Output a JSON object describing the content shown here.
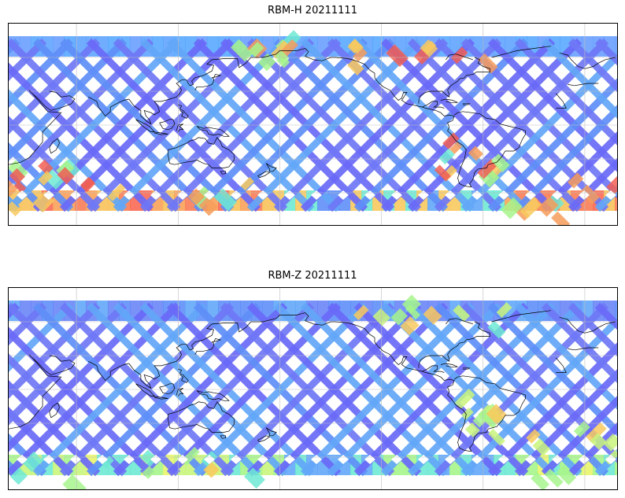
{
  "panels": [
    {
      "title": "RBM-H 20211111",
      "palette": "jet",
      "band_colors": {
        "north_lat_band": [
          "#5aa8ff",
          "#62a4ff",
          "#6aa0ff"
        ],
        "south_lat_band": [
          "#f97d57",
          "#f9a25a",
          "#f7c25b",
          "#f86a55"
        ],
        "tracks": [
          "#6a6af8",
          "#6f78f6",
          "#5f8ff8",
          "#63a7f8"
        ],
        "highlights": [
          "#f15f54",
          "#f69c5b",
          "#f8c95e",
          "#a6f58c",
          "#6ee9d4"
        ]
      }
    },
    {
      "title": "RBM-Z 20211111",
      "palette": "jet",
      "band_colors": {
        "north_lat_band": [
          "#5f8ff8",
          "#6a86f7",
          "#63a7f8"
        ],
        "south_lat_band": [
          "#a6f58c",
          "#c9f57c",
          "#e8f56b",
          "#6ee9d4"
        ],
        "tracks": [
          "#6a6af8",
          "#6f78f6",
          "#5f8ff8",
          "#63a7f8"
        ],
        "highlights": [
          "#a6f58c",
          "#c9f57c",
          "#6ee9d4",
          "#f8c95e"
        ]
      }
    }
  ]
}
